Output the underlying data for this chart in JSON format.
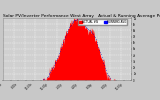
{
  "title": "Solar PV/Inverter Performance West Array   Actual & Running Average Power Output",
  "title_fontsize": 3.2,
  "background_color": "#c8c8c8",
  "plot_bg_color": "#d0d0d0",
  "grid_color": "#ffffff",
  "bar_color": "#ff0000",
  "avg_color": "#0000cc",
  "legend_actual_color": "#ff0000",
  "legend_avg_color": "#0000ff",
  "legend_actual": "ACTUAL kW",
  "legend_avg": "RUNNING AVG",
  "ylim": [
    0,
    1
  ],
  "n_points": 300,
  "seed": 12,
  "y_labels": [
    "1k",
    "9h",
    "8h",
    "7h",
    "6h",
    "5h",
    "4h",
    "3h",
    "2h",
    "1h",
    ""
  ],
  "x_labels": [
    "6:00a",
    "",
    "8:00a",
    "",
    "10:00a",
    "",
    "12:00p",
    "",
    "2:00p",
    "",
    "4:00p",
    "",
    "6:00p",
    "",
    "8:00p",
    "",
    "10:00p",
    ""
  ],
  "right_y_labels": [
    "1k",
    "9h",
    "8h",
    "7h",
    "6h",
    "5h",
    "4h",
    "3h",
    "2h",
    "1h",
    "0"
  ]
}
